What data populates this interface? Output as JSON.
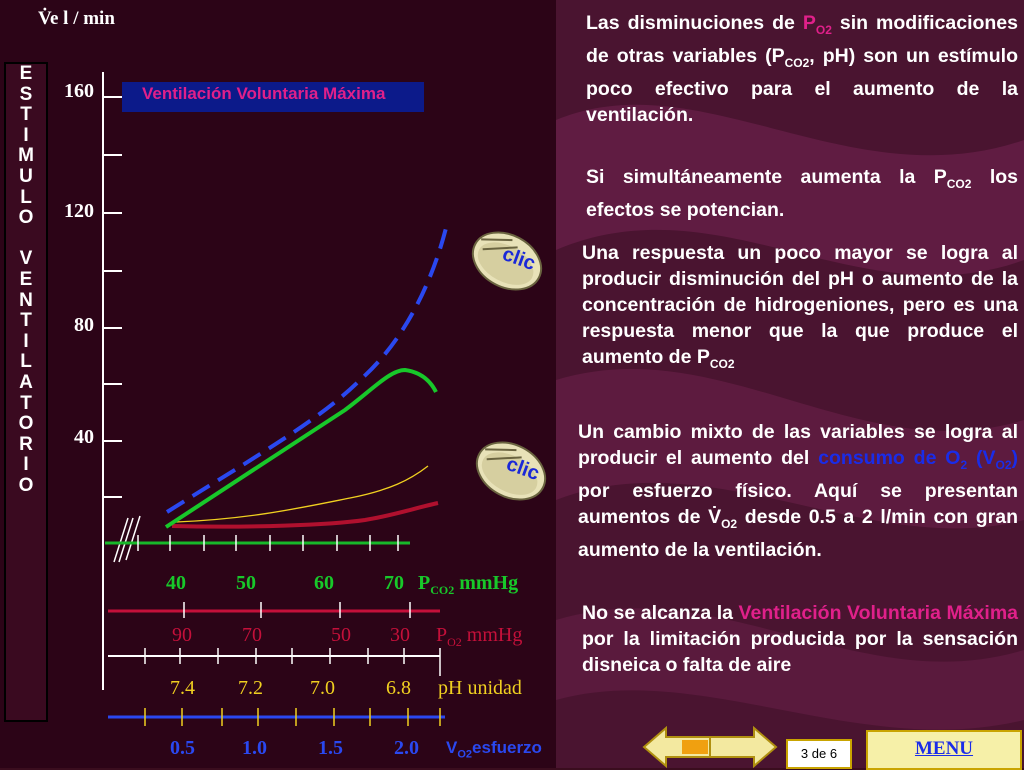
{
  "slide": {
    "axis_label": "V̇e   l / min",
    "vertical_label": [
      "E",
      "S",
      "T",
      "I",
      "M",
      "U",
      "L",
      "O",
      "",
      "V",
      "E",
      "N",
      "T",
      "I",
      "L",
      "A",
      "T",
      "O",
      "R",
      "I",
      "O"
    ],
    "y_ticks": [
      "160",
      "120",
      "80",
      "40"
    ],
    "vmv_label": "Ventilación Voluntaria Máxima",
    "scales": {
      "pco2": {
        "values": [
          "40",
          "50",
          "60",
          "70"
        ],
        "unit": "P",
        "unit_sub": "CO2",
        "unit_suffix": " mmHg",
        "color": "#18b82a"
      },
      "po2": {
        "values": [
          "90",
          "70",
          "50",
          "30"
        ],
        "unit": "P",
        "unit_sub": "O2",
        "unit_suffix": " mmHg",
        "color": "#c4103a"
      },
      "ph": {
        "values": [
          "7.4",
          "7.2",
          "7.0",
          "6.8"
        ],
        "unit": "pH unidad",
        "color": "#f0d020"
      },
      "vo2": {
        "values": [
          "0.5",
          "1.0",
          "1.5",
          "2.0"
        ],
        "unit": "V",
        "unit_sub": "O2",
        "unit_suffix": "esfuerzo",
        "color": "#2a48f0"
      }
    },
    "paragraphs": {
      "p1_a": "Las disminuciones de ",
      "p1_b": "P",
      "p1_b_sub": "O2",
      "p1_c": " sin modificaciones de otras variables (P",
      "p1_c_sub": "CO2",
      "p1_d": ", pH) son un estímulo poco efectivo para el aumento de la ventilación.",
      "p2_a": "Si simultáneamente aumenta la P",
      "p2_a_sub": "CO2",
      "p2_b": " los efectos se potencian.",
      "p3_a": "Una respuesta un poco mayor se logra al producir disminución del pH o aumento de la concentración de hidrogeniones, pero es una respuesta menor que la que produce el aumento de P",
      "p3_a_sub": "CO2",
      "p4_a": "Un cambio mixto de las variables se logra al producir el aumento del ",
      "p4_b": "consumo de O",
      "p4_b_sub": "2",
      "p4_c": " (V",
      "p4_c_sub": "O2",
      "p4_d": ")",
      "p4_e": " por esfuerzo físico. Aquí se presentan aumentos de V̇",
      "p4_e_sub": "O2",
      "p4_f": " desde 0.5 a 2 l/min con gran aumento de la ventilación.",
      "p5_a": "No se alcanza la ",
      "p5_b": "Ventilación Voluntaria Máxima",
      "p5_c": " por la limitación producida por la sensación disneica o falta de aire"
    },
    "clic_label": "clic",
    "page_indicator": "3  de 6",
    "menu_label": "MENU"
  }
}
